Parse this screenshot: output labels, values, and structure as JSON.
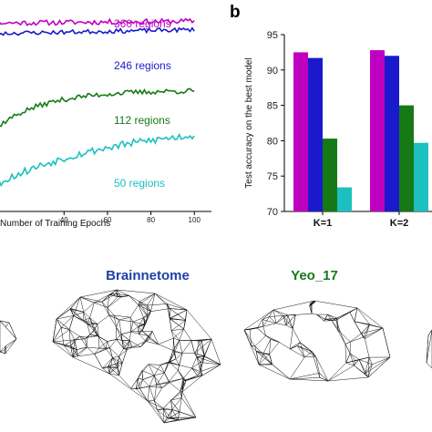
{
  "chart_data": [
    {
      "type": "line",
      "xlabel": "Number of Training Epochs",
      "xticks": [
        40,
        60,
        80,
        100
      ],
      "xlim": [
        0,
        102
      ],
      "ylim": [
        0,
        1
      ],
      "series": [
        {
          "name": "360 regions",
          "color": "#c000c0",
          "start": 0.89,
          "end": 0.9,
          "rate": 0,
          "noise": 0.012,
          "seed": 11
        },
        {
          "name": "246 regions",
          "color": "#1a1acc",
          "start": 0.84,
          "end": 0.86,
          "rate": 0,
          "noise": 0.01,
          "seed": 23
        },
        {
          "name": "112 regions",
          "color": "#157a15",
          "start": 0.31,
          "end": 0.57,
          "rate": 0.045,
          "noise": 0.012,
          "seed": 37
        },
        {
          "name": "50 regions",
          "color": "#1cc0c0",
          "start": 0.08,
          "end": 0.36,
          "rate": 0.018,
          "noise": 0.018,
          "seed": 53
        }
      ]
    },
    {
      "type": "bar",
      "panel": "b",
      "ylabel": "Test accuracy on the best model",
      "ylim": [
        70,
        95
      ],
      "yticks": [
        70,
        75,
        80,
        85,
        90,
        95
      ],
      "categories": [
        "K=1",
        "K=2"
      ],
      "series": [
        {
          "color": "#c000c0",
          "values": [
            92.5,
            92.8
          ]
        },
        {
          "color": "#1a1acc",
          "values": [
            91.7,
            92.0
          ]
        },
        {
          "color": "#157a15",
          "values": [
            80.3,
            85.0
          ]
        },
        {
          "color": "#1cc0c0",
          "values": [
            73.4,
            79.7
          ]
        }
      ]
    }
  ],
  "atlases": [
    {
      "title": "Brainnetome",
      "color": "#1f3fa8"
    },
    {
      "title": "Yeo_17",
      "color": "#157a15"
    }
  ]
}
